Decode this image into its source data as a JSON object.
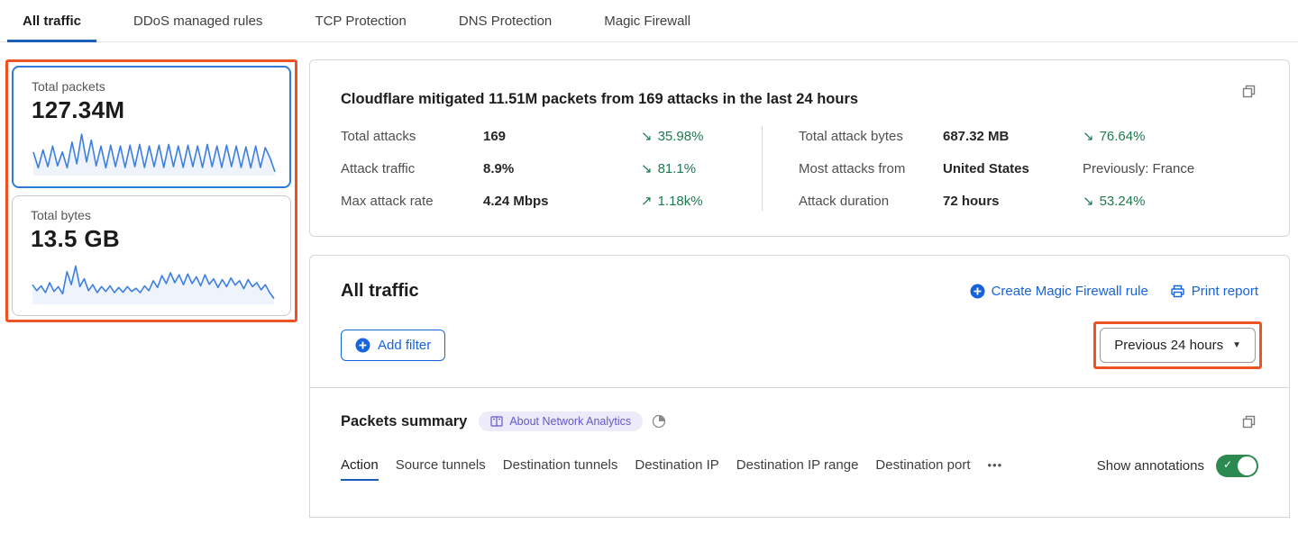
{
  "colors": {
    "accent_blue": "#1663dc",
    "active_tab_underline": "#1c5dba",
    "annotation_orange": "#f05323",
    "delta_green": "#1e7a4e",
    "toggle_green": "#2c8a50",
    "badge_purple": "#6258c8",
    "sparkline_blue": "#3d7fe0"
  },
  "tabs": {
    "items": [
      {
        "label": "All traffic",
        "active": true
      },
      {
        "label": "DDoS managed rules",
        "active": false
      },
      {
        "label": "TCP Protection",
        "active": false
      },
      {
        "label": "DNS Protection",
        "active": false
      },
      {
        "label": "Magic Firewall",
        "active": false
      }
    ]
  },
  "sidebar": {
    "packets_card": {
      "label": "Total packets",
      "value": "127.34M",
      "spark": [
        55,
        15,
        60,
        18,
        70,
        20,
        55,
        15,
        80,
        25,
        100,
        30,
        85,
        20,
        70,
        15,
        72,
        18,
        70,
        16,
        72,
        18,
        74,
        16,
        70,
        18,
        72,
        16,
        74,
        18,
        70,
        16,
        72,
        18,
        70,
        16,
        74,
        18,
        70,
        16,
        72,
        18,
        70,
        16,
        68,
        15,
        70,
        16,
        66,
        40,
        5
      ]
    },
    "bytes_card": {
      "label": "Total bytes",
      "value": "13.5 GB",
      "spark": [
        45,
        30,
        42,
        25,
        50,
        28,
        40,
        22,
        78,
        45,
        92,
        40,
        60,
        30,
        45,
        25,
        40,
        28,
        42,
        25,
        38,
        26,
        40,
        28,
        36,
        25,
        42,
        30,
        55,
        38,
        68,
        48,
        75,
        50,
        70,
        45,
        72,
        48,
        65,
        42,
        70,
        46,
        60,
        38,
        58,
        40,
        62,
        44,
        55,
        35,
        58,
        40,
        50,
        32,
        45,
        25,
        10
      ]
    }
  },
  "summary": {
    "title": "Cloudflare mitigated 11.51M packets from 169 attacks in the last 24 hours",
    "left_stats": [
      {
        "label": "Total attacks",
        "value": "169",
        "arrow": "↘",
        "delta": "35.98%"
      },
      {
        "label": "Attack traffic",
        "value": "8.9%",
        "arrow": "↘",
        "delta": "81.1%"
      },
      {
        "label": "Max attack rate",
        "value": "4.24 Mbps",
        "arrow": "↗",
        "delta": "1.18k%"
      }
    ],
    "right_stats": [
      {
        "label": "Total attack bytes",
        "value": "687.32 MB",
        "arrow": "↘",
        "delta": "76.64%"
      },
      {
        "label": "Most attacks from",
        "value": "United States",
        "arrow": "",
        "delta": "Previously: France"
      },
      {
        "label": "Attack duration",
        "value": "72 hours",
        "arrow": "↘",
        "delta": "53.24%"
      }
    ]
  },
  "traffic_panel": {
    "title": "All traffic",
    "create_rule_label": "Create Magic Firewall rule",
    "print_label": "Print report",
    "add_filter_label": "Add filter",
    "time_range_label": "Previous 24 hours",
    "caret": "▼"
  },
  "packets_summary": {
    "title": "Packets summary",
    "badge_label": "About Network Analytics",
    "tabs": [
      {
        "label": "Action",
        "active": true
      },
      {
        "label": "Source tunnels",
        "active": false
      },
      {
        "label": "Destination tunnels",
        "active": false
      },
      {
        "label": "Destination IP",
        "active": false
      },
      {
        "label": "Destination IP range",
        "active": false
      },
      {
        "label": "Destination port",
        "active": false
      }
    ],
    "more_label": "•••",
    "show_annotations_label": "Show annotations",
    "toggle_check": "✓",
    "annotations_on": true
  }
}
